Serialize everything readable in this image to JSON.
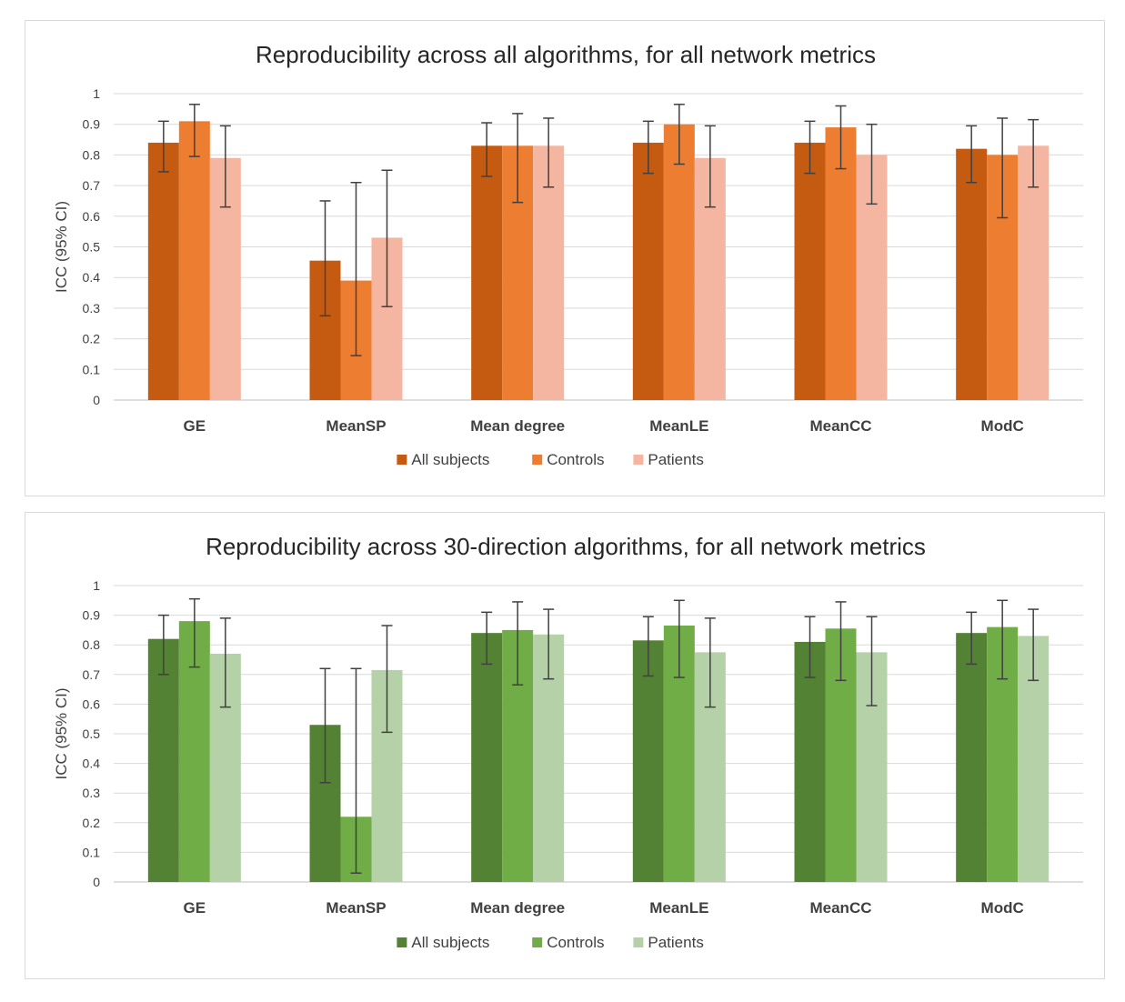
{
  "chart_data": [
    {
      "type": "bar",
      "title": "Reproducibility across all algorithms, for all network metrics",
      "xlabel": "",
      "ylabel": "ICC (95% CI)",
      "ylim": [
        0,
        1
      ],
      "yticks": [
        "0",
        "0.1",
        "0.2",
        "0.3",
        "0.4",
        "0.5",
        "0.6",
        "0.7",
        "0.8",
        "0.9",
        "1"
      ],
      "categories": [
        "GE",
        "MeanSP",
        "Mean degree",
        "MeanLE",
        "MeanCC",
        "ModC"
      ],
      "legend_position": "bottom",
      "grid": true,
      "series": [
        {
          "name": "All subjects",
          "color": "#c55a11",
          "values": [
            0.84,
            0.455,
            0.83,
            0.84,
            0.84,
            0.82
          ],
          "ci_low": [
            0.745,
            0.275,
            0.73,
            0.74,
            0.74,
            0.71
          ],
          "ci_high": [
            0.91,
            0.65,
            0.905,
            0.91,
            0.91,
            0.895
          ]
        },
        {
          "name": "Controls",
          "color": "#ed7d31",
          "values": [
            0.91,
            0.39,
            0.83,
            0.9,
            0.89,
            0.8
          ],
          "ci_low": [
            0.795,
            0.145,
            0.645,
            0.77,
            0.755,
            0.595
          ],
          "ci_high": [
            0.965,
            0.71,
            0.935,
            0.965,
            0.96,
            0.92
          ]
        },
        {
          "name": "Patients",
          "color": "#f4b6a0",
          "values": [
            0.79,
            0.53,
            0.83,
            0.79,
            0.8,
            0.83
          ],
          "ci_low": [
            0.63,
            0.305,
            0.695,
            0.63,
            0.64,
            0.695
          ],
          "ci_high": [
            0.895,
            0.75,
            0.92,
            0.895,
            0.9,
            0.915
          ]
        }
      ]
    },
    {
      "type": "bar",
      "title": "Reproducibility across 30-direction algorithms, for all network metrics",
      "xlabel": "",
      "ylabel": "ICC (95% CI)",
      "ylim": [
        0,
        1
      ],
      "yticks": [
        "0",
        "0.1",
        "0.2",
        "0.3",
        "0.4",
        "0.5",
        "0.6",
        "0.7",
        "0.8",
        "0.9",
        "1"
      ],
      "categories": [
        "GE",
        "MeanSP",
        "Mean degree",
        "MeanLE",
        "MeanCC",
        "ModC"
      ],
      "legend_position": "bottom",
      "grid": true,
      "series": [
        {
          "name": "All subjects",
          "color": "#548235",
          "values": [
            0.82,
            0.53,
            0.84,
            0.815,
            0.81,
            0.84
          ],
          "ci_low": [
            0.7,
            0.335,
            0.735,
            0.695,
            0.69,
            0.735
          ],
          "ci_high": [
            0.9,
            0.72,
            0.91,
            0.895,
            0.895,
            0.91
          ]
        },
        {
          "name": "Controls",
          "color": "#70ad47",
          "values": [
            0.88,
            0.22,
            0.85,
            0.865,
            0.855,
            0.86
          ],
          "ci_low": [
            0.725,
            0.03,
            0.665,
            0.69,
            0.68,
            0.685
          ],
          "ci_high": [
            0.955,
            0.72,
            0.945,
            0.95,
            0.945,
            0.95
          ]
        },
        {
          "name": "Patients",
          "color": "#b5d1a7",
          "values": [
            0.77,
            0.715,
            0.835,
            0.775,
            0.775,
            0.83
          ],
          "ci_low": [
            0.59,
            0.505,
            0.685,
            0.59,
            0.595,
            0.68
          ],
          "ci_high": [
            0.89,
            0.865,
            0.92,
            0.89,
            0.895,
            0.92
          ]
        }
      ]
    }
  ]
}
